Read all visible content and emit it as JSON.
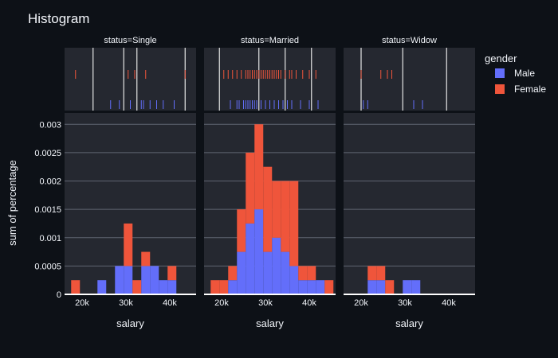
{
  "chart_data": {
    "type": "bar",
    "title": "Histogram",
    "xlabel": "salary",
    "ylabel": "sum of percentage",
    "barmode": "stack",
    "colors": {
      "Male": "#636efa",
      "Female": "#ef553b",
      "background": "#0d1117",
      "plot_bg": "#252830",
      "grid": "#ffffff"
    },
    "legend": {
      "title": "gender",
      "position": "right",
      "items": [
        "Male",
        "Female"
      ]
    },
    "x_ticks": [
      {
        "value": 20000,
        "label": "20k"
      },
      {
        "value": 30000,
        "label": "30k"
      },
      {
        "value": 40000,
        "label": "40k"
      }
    ],
    "y_ticks": [
      {
        "value": 0,
        "label": "0"
      },
      {
        "value": 0.0005,
        "label": "0.0005"
      },
      {
        "value": 0.001,
        "label": "0.001"
      },
      {
        "value": 0.0015,
        "label": "0.0015"
      },
      {
        "value": 0.002,
        "label": "0.002"
      },
      {
        "value": 0.0025,
        "label": "0.0025"
      },
      {
        "value": 0.003,
        "label": "0.003"
      }
    ],
    "xlim": [
      16000,
      46000
    ],
    "ylim": [
      0,
      0.0032
    ],
    "bin_start": 17500,
    "bin_width": 2000,
    "facets": [
      {
        "label": "status=Single",
        "male": [
          0,
          0,
          0,
          0.00025,
          0,
          0.0005,
          0.0005,
          0,
          0.0005,
          0.0005,
          0.00025,
          0.00025,
          0,
          0
        ],
        "female": [
          0.00025,
          0,
          0,
          0,
          0,
          0,
          0.00075,
          0.00025,
          0.00025,
          0,
          0,
          0.00025,
          0,
          0
        ],
        "median_lines": [
          22500,
          29500,
          32500,
          43500
        ],
        "rug_male": [
          26500,
          28500,
          31000,
          33500,
          34000,
          35500,
          37000,
          38500,
          41000
        ],
        "rug_female": [
          18500,
          30500,
          32000,
          34500,
          43500
        ]
      },
      {
        "label": "status=Married",
        "male": [
          0,
          0,
          0.00025,
          0.00075,
          0.00125,
          0.0015,
          0.00075,
          0.001,
          0.00075,
          0.0005,
          0.00025,
          0.00025,
          0.00025,
          0
        ],
        "female": [
          0.00025,
          0.00025,
          0.00025,
          0.00075,
          0.00125,
          0.0015,
          0.0015,
          0.001,
          0.00125,
          0.0015,
          0.00025,
          0.00025,
          0,
          0.00025
        ],
        "median_lines": [
          19500,
          28500,
          34500,
          40500
        ],
        "rug_male": [
          22000,
          23500,
          24000,
          25000,
          25500,
          26000,
          26500,
          27000,
          27500,
          28000,
          29000,
          30000,
          31000,
          32000,
          33000,
          34000,
          35000,
          36000,
          38000,
          40000,
          42000
        ],
        "rug_female": [
          20500,
          21500,
          22500,
          23500,
          24500,
          25500,
          26000,
          26500,
          27000,
          27500,
          28000,
          28500,
          29000,
          29500,
          30000,
          30500,
          31000,
          31500,
          32000,
          32500,
          33000,
          33500,
          34500,
          35500,
          36000,
          37000,
          38500,
          40000,
          41500
        ]
      },
      {
        "label": "status=Widow",
        "male": [
          0,
          0,
          0.00025,
          0.00025,
          0,
          0,
          0.00025,
          0.00025,
          0,
          0,
          0,
          0,
          0,
          0
        ],
        "female": [
          0,
          0,
          0.00025,
          0.00025,
          0.00025,
          0,
          0,
          0,
          0,
          0,
          0,
          0,
          0,
          0
        ],
        "median_lines": [
          20000,
          29500,
          39500
        ],
        "rug_male": [
          20500,
          21500,
          32000,
          34000
        ],
        "rug_female": [
          20000,
          24500,
          26000,
          27000
        ]
      }
    ]
  }
}
